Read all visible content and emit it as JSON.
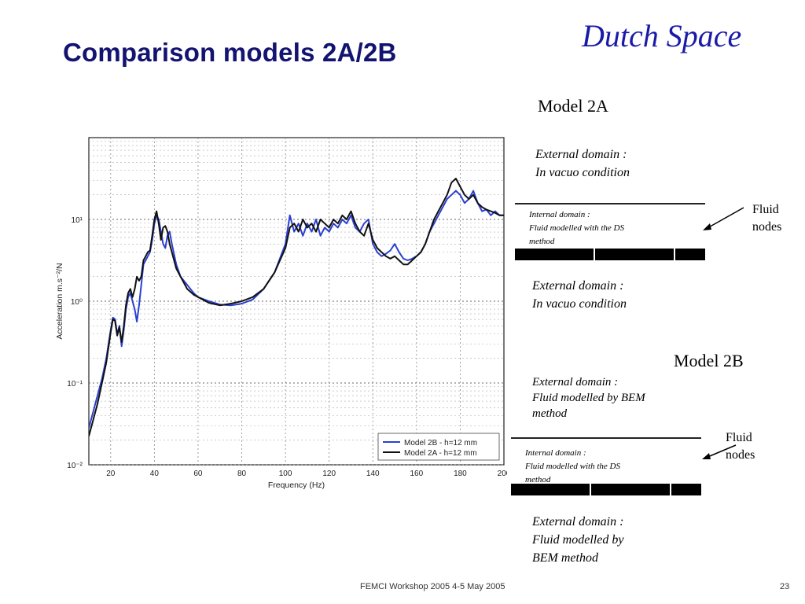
{
  "header": {
    "brand": "Dutch Space",
    "title": "Comparison models 2A/2B"
  },
  "model_2a": {
    "label": "Model 2A",
    "external_top": [
      "External domain :",
      "In vacuo condition"
    ],
    "internal": [
      "Internal domain :",
      "Fluid modelled with the DS",
      "method"
    ],
    "external_bottom": [
      "External domain :",
      "In vacuo condition"
    ],
    "fluid": [
      "Fluid",
      "nodes"
    ]
  },
  "model_2b": {
    "label": "Model 2B",
    "external_top": [
      "External domain :",
      "Fluid modelled by BEM",
      "method"
    ],
    "internal": [
      "Internal domain :",
      "Fluid modelled with the DS",
      "method"
    ],
    "external_bottom": [
      "External domain :",
      "Fluid modelled by",
      "BEM method"
    ],
    "fluid": [
      "Fluid",
      "nodes"
    ]
  },
  "footer": {
    "text": "FEMCI Workshop 2005 4-5  May 2005",
    "page": "23"
  },
  "colors": {
    "brand": "#1a1aa8",
    "title": "#131370",
    "series_2b": "#2a3fd0",
    "series_2a": "#111111"
  },
  "chart_data": {
    "type": "line",
    "xlabel": "Frequency (Hz)",
    "ylabel": "Acceleration m.s⁻²/N",
    "xlim": [
      10,
      200
    ],
    "ylim": [
      -2,
      2
    ],
    "log_y": true,
    "x_ticks": [
      20,
      40,
      60,
      80,
      100,
      120,
      140,
      160,
      180,
      200
    ],
    "y_ticks": [
      {
        "value": 1,
        "label": "10¹"
      },
      {
        "value": 0,
        "label": "10⁰"
      },
      {
        "value": -1,
        "label": "10⁻¹"
      },
      {
        "value": -2,
        "label": "10⁻²"
      }
    ],
    "grid": true,
    "legend_position": "bottom-right",
    "series": [
      {
        "name": "Model 2B - h=12 mm",
        "x": [
          10,
          12,
          14,
          16,
          18,
          20,
          21,
          22,
          23,
          24,
          25,
          26,
          27,
          28,
          29,
          30,
          31,
          32,
          33,
          34,
          35,
          36,
          37,
          38,
          39,
          40,
          41,
          42,
          43,
          44,
          45,
          46,
          47,
          48,
          50,
          52,
          55,
          58,
          60,
          65,
          70,
          75,
          80,
          85,
          90,
          95,
          100,
          102,
          104,
          106,
          108,
          110,
          112,
          114,
          116,
          118,
          120,
          122,
          124,
          126,
          128,
          130,
          132,
          134,
          136,
          138,
          140,
          142,
          144,
          146,
          148,
          150,
          152,
          154,
          156,
          158,
          160,
          162,
          164,
          166,
          168,
          170,
          172,
          174,
          176,
          178,
          180,
          182,
          184,
          186,
          188,
          190,
          192,
          194,
          196,
          198,
          200
        ],
        "values": [
          -1.55,
          -1.35,
          -1.15,
          -0.95,
          -0.7,
          -0.35,
          -0.2,
          -0.22,
          -0.4,
          -0.3,
          -0.55,
          -0.35,
          -0.1,
          0.05,
          0.1,
          0.0,
          -0.1,
          -0.25,
          -0.05,
          0.2,
          0.45,
          0.5,
          0.55,
          0.6,
          0.75,
          0.95,
          1.05,
          1.0,
          0.85,
          0.7,
          0.65,
          0.8,
          0.85,
          0.7,
          0.45,
          0.3,
          0.2,
          0.1,
          0.05,
          0.0,
          -0.04,
          -0.05,
          -0.03,
          0.02,
          0.15,
          0.35,
          0.7,
          1.05,
          0.85,
          0.95,
          0.8,
          0.95,
          0.85,
          1.0,
          0.8,
          0.9,
          0.85,
          0.95,
          0.9,
          1.0,
          0.95,
          1.05,
          0.9,
          0.85,
          0.95,
          1.0,
          0.7,
          0.6,
          0.55,
          0.58,
          0.62,
          0.7,
          0.6,
          0.52,
          0.5,
          0.52,
          0.55,
          0.6,
          0.7,
          0.85,
          0.95,
          1.05,
          1.15,
          1.25,
          1.3,
          1.35,
          1.3,
          1.2,
          1.25,
          1.35,
          1.2,
          1.1,
          1.12,
          1.05,
          1.1,
          1.05,
          1.05
        ]
      },
      {
        "name": "Model 2A - h=12 mm",
        "x": [
          10,
          12,
          14,
          16,
          18,
          20,
          21,
          22,
          23,
          24,
          25,
          26,
          27,
          28,
          29,
          30,
          31,
          32,
          33,
          34,
          35,
          36,
          37,
          38,
          39,
          40,
          41,
          42,
          43,
          44,
          45,
          46,
          47,
          48,
          50,
          52,
          55,
          58,
          60,
          65,
          70,
          75,
          80,
          85,
          90,
          95,
          100,
          102,
          104,
          106,
          108,
          110,
          112,
          114,
          116,
          118,
          120,
          122,
          124,
          126,
          128,
          130,
          132,
          134,
          136,
          138,
          140,
          142,
          144,
          146,
          148,
          150,
          152,
          154,
          156,
          158,
          160,
          162,
          164,
          166,
          168,
          170,
          172,
          174,
          176,
          178,
          180,
          182,
          184,
          186,
          188,
          190,
          192,
          194,
          196,
          198,
          200
        ],
        "values": [
          -1.65,
          -1.45,
          -1.25,
          -1.0,
          -0.75,
          -0.38,
          -0.22,
          -0.24,
          -0.42,
          -0.32,
          -0.5,
          -0.3,
          -0.05,
          0.1,
          0.15,
          0.05,
          0.15,
          0.3,
          0.25,
          0.3,
          0.5,
          0.55,
          0.6,
          0.62,
          0.8,
          1.0,
          1.1,
          0.95,
          0.75,
          0.9,
          0.92,
          0.85,
          0.7,
          0.6,
          0.4,
          0.3,
          0.15,
          0.08,
          0.05,
          -0.02,
          -0.05,
          -0.03,
          0.0,
          0.05,
          0.15,
          0.35,
          0.65,
          0.9,
          0.95,
          0.85,
          1.0,
          0.9,
          0.95,
          0.85,
          1.0,
          0.95,
          0.9,
          1.0,
          0.95,
          1.05,
          1.0,
          1.1,
          0.95,
          0.85,
          0.8,
          0.95,
          0.75,
          0.65,
          0.6,
          0.55,
          0.52,
          0.55,
          0.5,
          0.45,
          0.45,
          0.5,
          0.55,
          0.6,
          0.7,
          0.85,
          1.0,
          1.1,
          1.2,
          1.3,
          1.45,
          1.5,
          1.4,
          1.3,
          1.25,
          1.3,
          1.2,
          1.15,
          1.12,
          1.1,
          1.08,
          1.05,
          1.05
        ]
      }
    ]
  }
}
